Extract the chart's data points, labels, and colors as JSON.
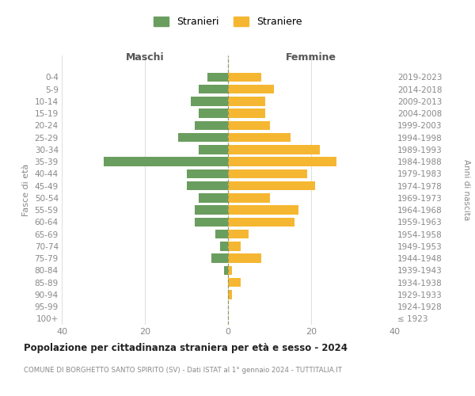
{
  "age_groups": [
    "100+",
    "95-99",
    "90-94",
    "85-89",
    "80-84",
    "75-79",
    "70-74",
    "65-69",
    "60-64",
    "55-59",
    "50-54",
    "45-49",
    "40-44",
    "35-39",
    "30-34",
    "25-29",
    "20-24",
    "15-19",
    "10-14",
    "5-9",
    "0-4"
  ],
  "birth_years": [
    "≤ 1923",
    "1924-1928",
    "1929-1933",
    "1934-1938",
    "1939-1943",
    "1944-1948",
    "1949-1953",
    "1954-1958",
    "1959-1963",
    "1964-1968",
    "1969-1973",
    "1974-1978",
    "1979-1983",
    "1984-1988",
    "1989-1993",
    "1994-1998",
    "1999-2003",
    "2004-2008",
    "2009-2013",
    "2014-2018",
    "2019-2023"
  ],
  "maschi": [
    0,
    0,
    0,
    0,
    1,
    4,
    2,
    3,
    8,
    8,
    7,
    10,
    10,
    30,
    7,
    12,
    8,
    7,
    9,
    7,
    5
  ],
  "femmine": [
    0,
    0,
    1,
    3,
    1,
    8,
    3,
    5,
    16,
    17,
    10,
    21,
    19,
    26,
    22,
    15,
    10,
    9,
    9,
    11,
    8
  ],
  "color_maschi": "#6a9e5e",
  "color_femmine": "#f5b731",
  "title": "Popolazione per cittadinanza straniera per età e sesso - 2024",
  "subtitle": "COMUNE DI BORGHETTO SANTO SPIRITO (SV) - Dati ISTAT al 1° gennaio 2024 - TUTTITALIA.IT",
  "ylabel_left": "Fasce di età",
  "ylabel_right": "Anni di nascita",
  "xlabel_left": "Maschi",
  "xlabel_right": "Femmine",
  "legend_maschi": "Stranieri",
  "legend_femmine": "Straniere",
  "xlim": 40,
  "background_color": "#ffffff",
  "grid_color": "#d8d8d8"
}
